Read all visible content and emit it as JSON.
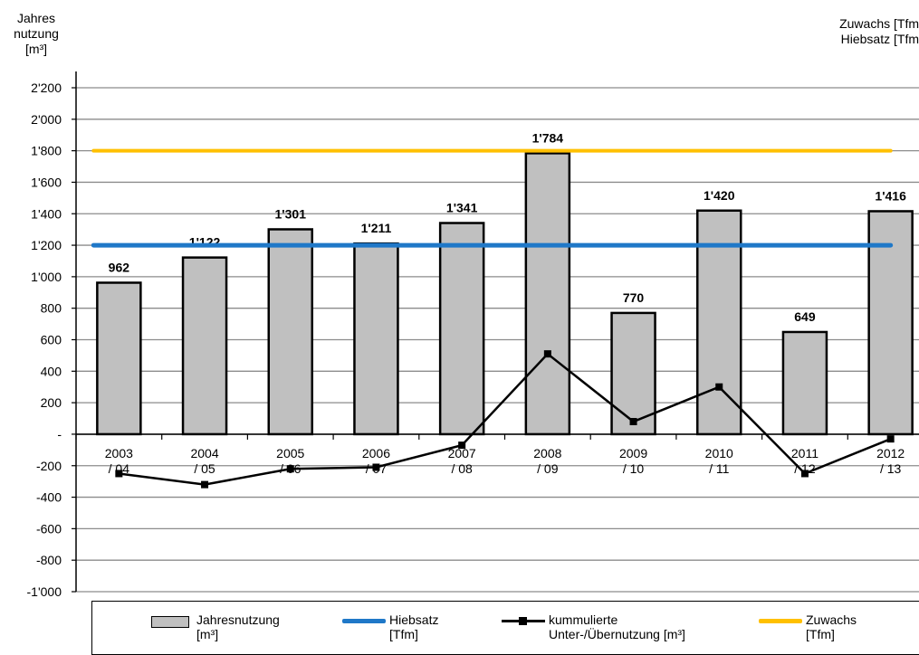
{
  "axis": {
    "y_title_lines": [
      "Jahres",
      "nutzung",
      "[m³]"
    ],
    "y2_title_lines": [
      "Zuwachs [Tfm",
      "Hiebsatz [Tfm"
    ]
  },
  "legend": [
    {
      "lines": [
        "Jahresnutzung",
        "[m³]"
      ],
      "key": "bars"
    },
    {
      "lines": [
        "Hiebsatz",
        "[Tfm]"
      ],
      "key": "hiebsatz"
    },
    {
      "lines": [
        "kummulierte",
        "Unter-/Übernutzung [m³]"
      ],
      "key": "cumulative"
    },
    {
      "lines": [
        "Zuwachs",
        "[Tfm]"
      ],
      "key": "zuwachs"
    }
  ],
  "colors": {
    "bar_fill": "#c0c0c0",
    "bar_stroke": "#000000",
    "hiebsatz": "#1f78c8",
    "zuwachs": "#ffc000",
    "cumulative": "#000000",
    "grid": "#8c8c8c"
  },
  "chart_data": {
    "type": "bar",
    "categories": [
      [
        "2003",
        "/ 04"
      ],
      [
        "2004",
        "/ 05"
      ],
      [
        "2005",
        "/ 06"
      ],
      [
        "2006",
        "/ 07"
      ],
      [
        "2007",
        "/ 08"
      ],
      [
        "2008",
        "/ 09"
      ],
      [
        "2009",
        "/ 10"
      ],
      [
        "2010",
        "/ 11"
      ],
      [
        "2011",
        "/ 12"
      ],
      [
        "2012",
        "/ 13"
      ]
    ],
    "ylim": [
      -1000,
      2200
    ],
    "ytick_step": 200,
    "ytick_labels": [
      "-1'000",
      "-800",
      "-600",
      "-400",
      "-200",
      "-",
      "200",
      "400",
      "600",
      "800",
      "1'000",
      "1'200",
      "1'400",
      "1'600",
      "1'800",
      "2'000",
      "2'200"
    ],
    "grid": true,
    "legend_position": "bottom",
    "series": [
      {
        "name": "Jahresnutzung [m³]",
        "type": "bar",
        "values": [
          962,
          1122,
          1301,
          1211,
          1341,
          1784,
          770,
          1420,
          649,
          1416
        ],
        "labels": [
          "962",
          "1'122",
          "1'301",
          "1'211",
          "1'341",
          "1'784",
          "770",
          "1'420",
          "649",
          "1'416"
        ]
      },
      {
        "name": "Hiebsatz [Tfm]",
        "type": "line",
        "values": [
          1200,
          1200,
          1200,
          1200,
          1200,
          1200,
          1200,
          1200,
          1200,
          1200
        ]
      },
      {
        "name": "kummulierte Unter-/Übernutzung [m³]",
        "type": "line",
        "marker": "square",
        "values": [
          -250,
          -320,
          -220,
          -210,
          -70,
          510,
          80,
          300,
          -250,
          -30
        ]
      },
      {
        "name": "Zuwachs [Tfm]",
        "type": "line",
        "values": [
          1800,
          1800,
          1800,
          1800,
          1800,
          1800,
          1800,
          1800,
          1800,
          1800
        ]
      }
    ]
  }
}
